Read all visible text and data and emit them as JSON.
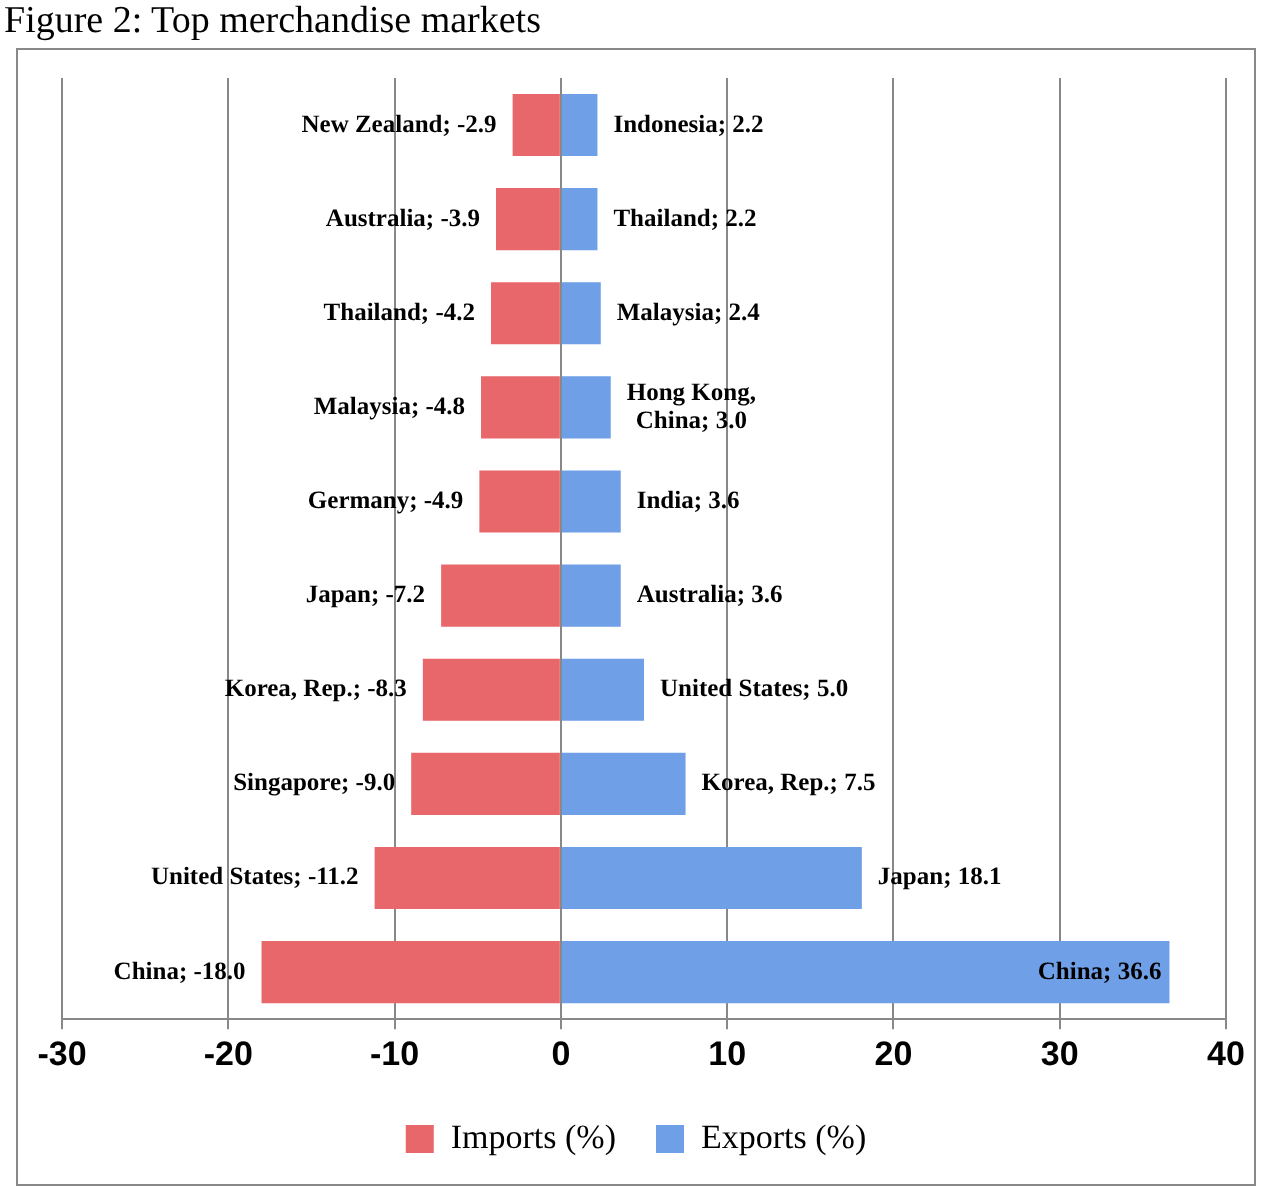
{
  "chart_data": {
    "type": "bar",
    "title": "Figure 2: Top merchandise markets",
    "orientation": "horizontal",
    "stacked": true,
    "categories": [
      null,
      null,
      null,
      null,
      null,
      null,
      null,
      null,
      null,
      null
    ],
    "series": [
      {
        "name": "Imports (%)",
        "color": "#e8676a",
        "values": [
          -2.9,
          -3.9,
          -4.2,
          -4.8,
          -4.9,
          -7.2,
          -8.3,
          -9.0,
          -11.2,
          -18.0
        ],
        "value_labels": [
          "New Zealand; -2.9",
          "Australia; -3.9",
          "Thailand; -4.2",
          "Malaysia; -4.8",
          "Germany; -4.9",
          "Japan; -7.2",
          "Korea, Rep.; -8.3",
          "Singapore; -9.0",
          "United States; -11.2",
          "China; -18.0"
        ]
      },
      {
        "name": "Exports (%)",
        "color": "#6f9fe6",
        "values": [
          2.2,
          2.2,
          2.4,
          3.0,
          3.6,
          3.6,
          5.0,
          7.5,
          18.1,
          36.6
        ],
        "value_labels": [
          "Indonesia; 2.2",
          "Thailand; 2.2",
          "Malaysia; 2.4",
          "Hong Kong, China; 3.0",
          "India; 3.6",
          "Australia; 3.6",
          "United States; 5.0",
          "Korea, Rep.; 7.5",
          "Japan; 18.1",
          "China; 36.6"
        ]
      }
    ],
    "xlim": [
      -30,
      40
    ],
    "xticks": [
      -30,
      -20,
      -10,
      0,
      10,
      20,
      30,
      40
    ],
    "grid": "x",
    "legend": "bottom"
  }
}
